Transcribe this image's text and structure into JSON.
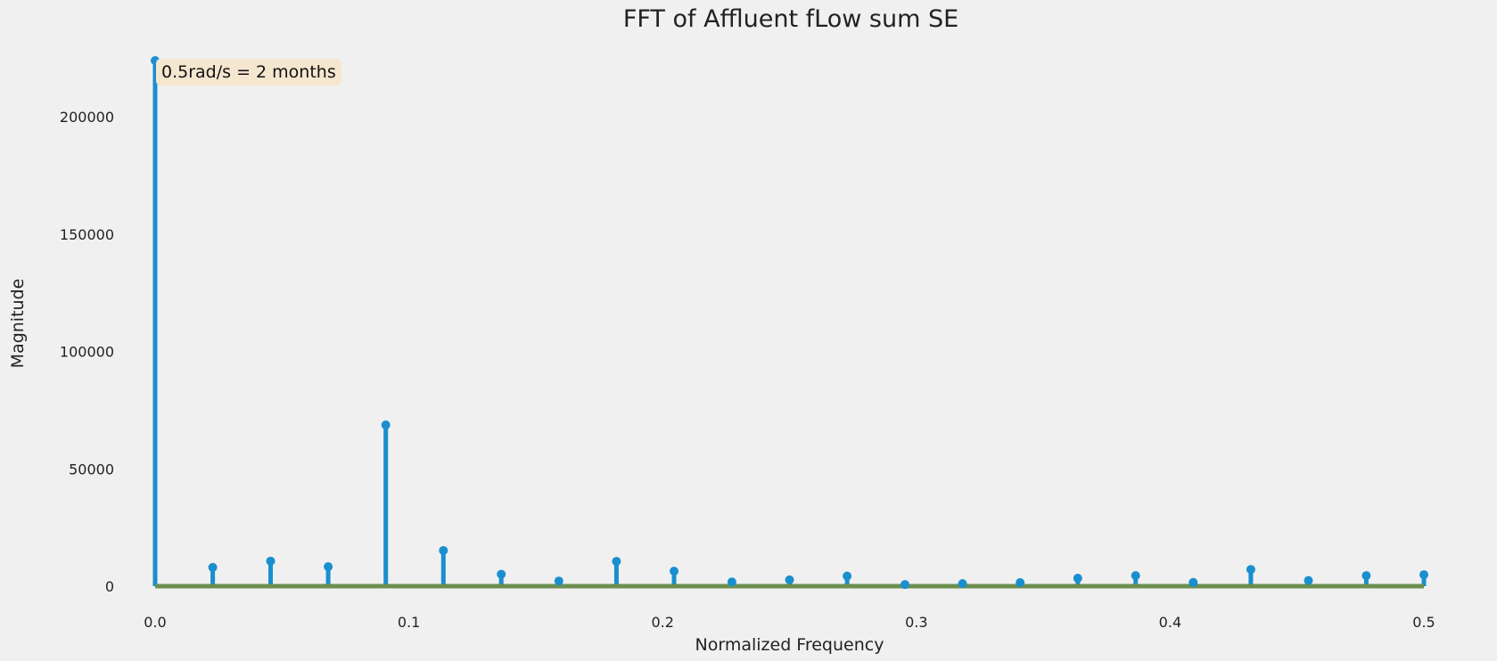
{
  "chart_data": {
    "type": "stem",
    "title": "FFT of Affluent fLow sum SE",
    "xlabel": "Normalized Frequency",
    "ylabel": "Magnitude",
    "xlim": [
      0.0,
      0.5
    ],
    "ylim": [
      0,
      224000
    ],
    "xticks": [
      0.0,
      0.1,
      0.2,
      0.3,
      0.4,
      0.5
    ],
    "xtick_labels": [
      "0.0",
      "0.1",
      "0.2",
      "0.3",
      "0.4",
      "0.5"
    ],
    "yticks": [
      0,
      50000,
      100000,
      150000,
      200000
    ],
    "ytick_labels": [
      "0",
      "50000",
      "100000",
      "150000",
      "200000"
    ],
    "grid": false,
    "annotation": "0.5rad/s = 2 months",
    "baseline_value": 0,
    "colors": {
      "stem": "#1a8fcf",
      "baseline": "#6b8f4e",
      "annotation_box": "#f5e6cf",
      "background": "#f0f0f0"
    },
    "x": [
      0.0,
      0.0227,
      0.0455,
      0.0682,
      0.0909,
      0.1136,
      0.1364,
      0.1591,
      0.1818,
      0.2045,
      0.2273,
      0.25,
      0.2727,
      0.2955,
      0.3182,
      0.3409,
      0.3636,
      0.3864,
      0.4091,
      0.4318,
      0.4545,
      0.4773,
      0.5
    ],
    "values": [
      224000,
      8000,
      10700,
      8300,
      68700,
      15200,
      5100,
      2200,
      10600,
      6400,
      1800,
      2700,
      4300,
      700,
      1100,
      1500,
      3400,
      4500,
      1600,
      7100,
      2400,
      4500,
      4900
    ]
  }
}
